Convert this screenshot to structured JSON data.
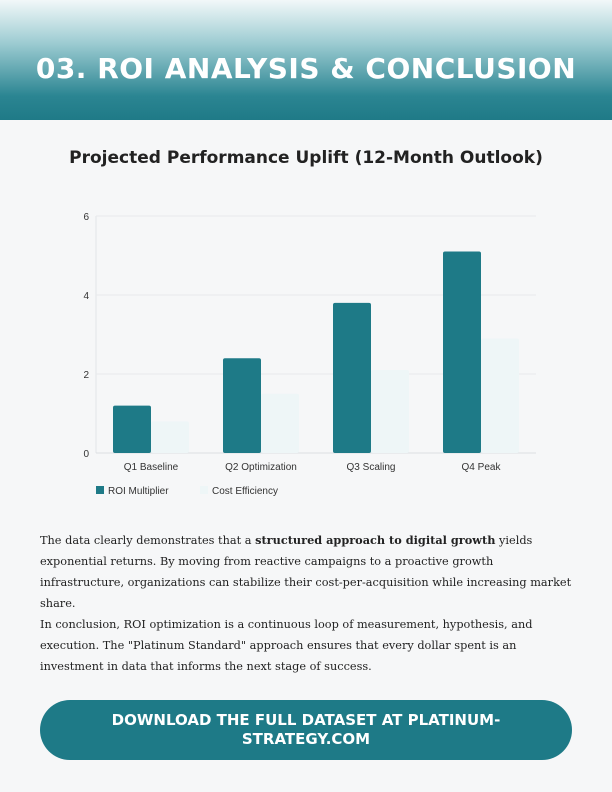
{
  "header": {
    "title": "03. ROI ANALYSIS & CONCLUSION"
  },
  "chart_data": {
    "type": "bar",
    "title": "Projected Performance Uplift (12-Month Outlook)",
    "categories": [
      "Q1 Baseline",
      "Q2 Optimization",
      "Q3 Scaling",
      "Q4 Peak"
    ],
    "series": [
      {
        "name": "ROI Multiplier",
        "values": [
          1.2,
          2.4,
          3.8,
          5.1
        ],
        "color": "#1e7a87"
      },
      {
        "name": "Cost Efficiency",
        "values": [
          0.8,
          1.5,
          2.1,
          2.9
        ],
        "color": "#eef6f7"
      }
    ],
    "ylim": [
      0,
      6
    ],
    "yticks": [
      0,
      2,
      4,
      6
    ],
    "grid": true,
    "legend": "bottom-left"
  },
  "body": {
    "p1_a": "The data clearly demonstrates that a ",
    "p1_b": "structured approach to digital growth",
    "p1_c": " yields exponential returns. By moving from reactive campaigns to a proactive growth infrastructure, organizations can stabilize their cost-per-acquisition while increasing market share.",
    "p2": "In conclusion, ROI optimization is a continuous loop of measurement, hypothesis, and execution. The \"Platinum Standard\" approach ensures that every dollar spent is an investment in data that informs the next stage of success."
  },
  "cta": {
    "label": "DOWNLOAD THE FULL DATASET AT PLATINUM-STRATEGY.COM"
  }
}
